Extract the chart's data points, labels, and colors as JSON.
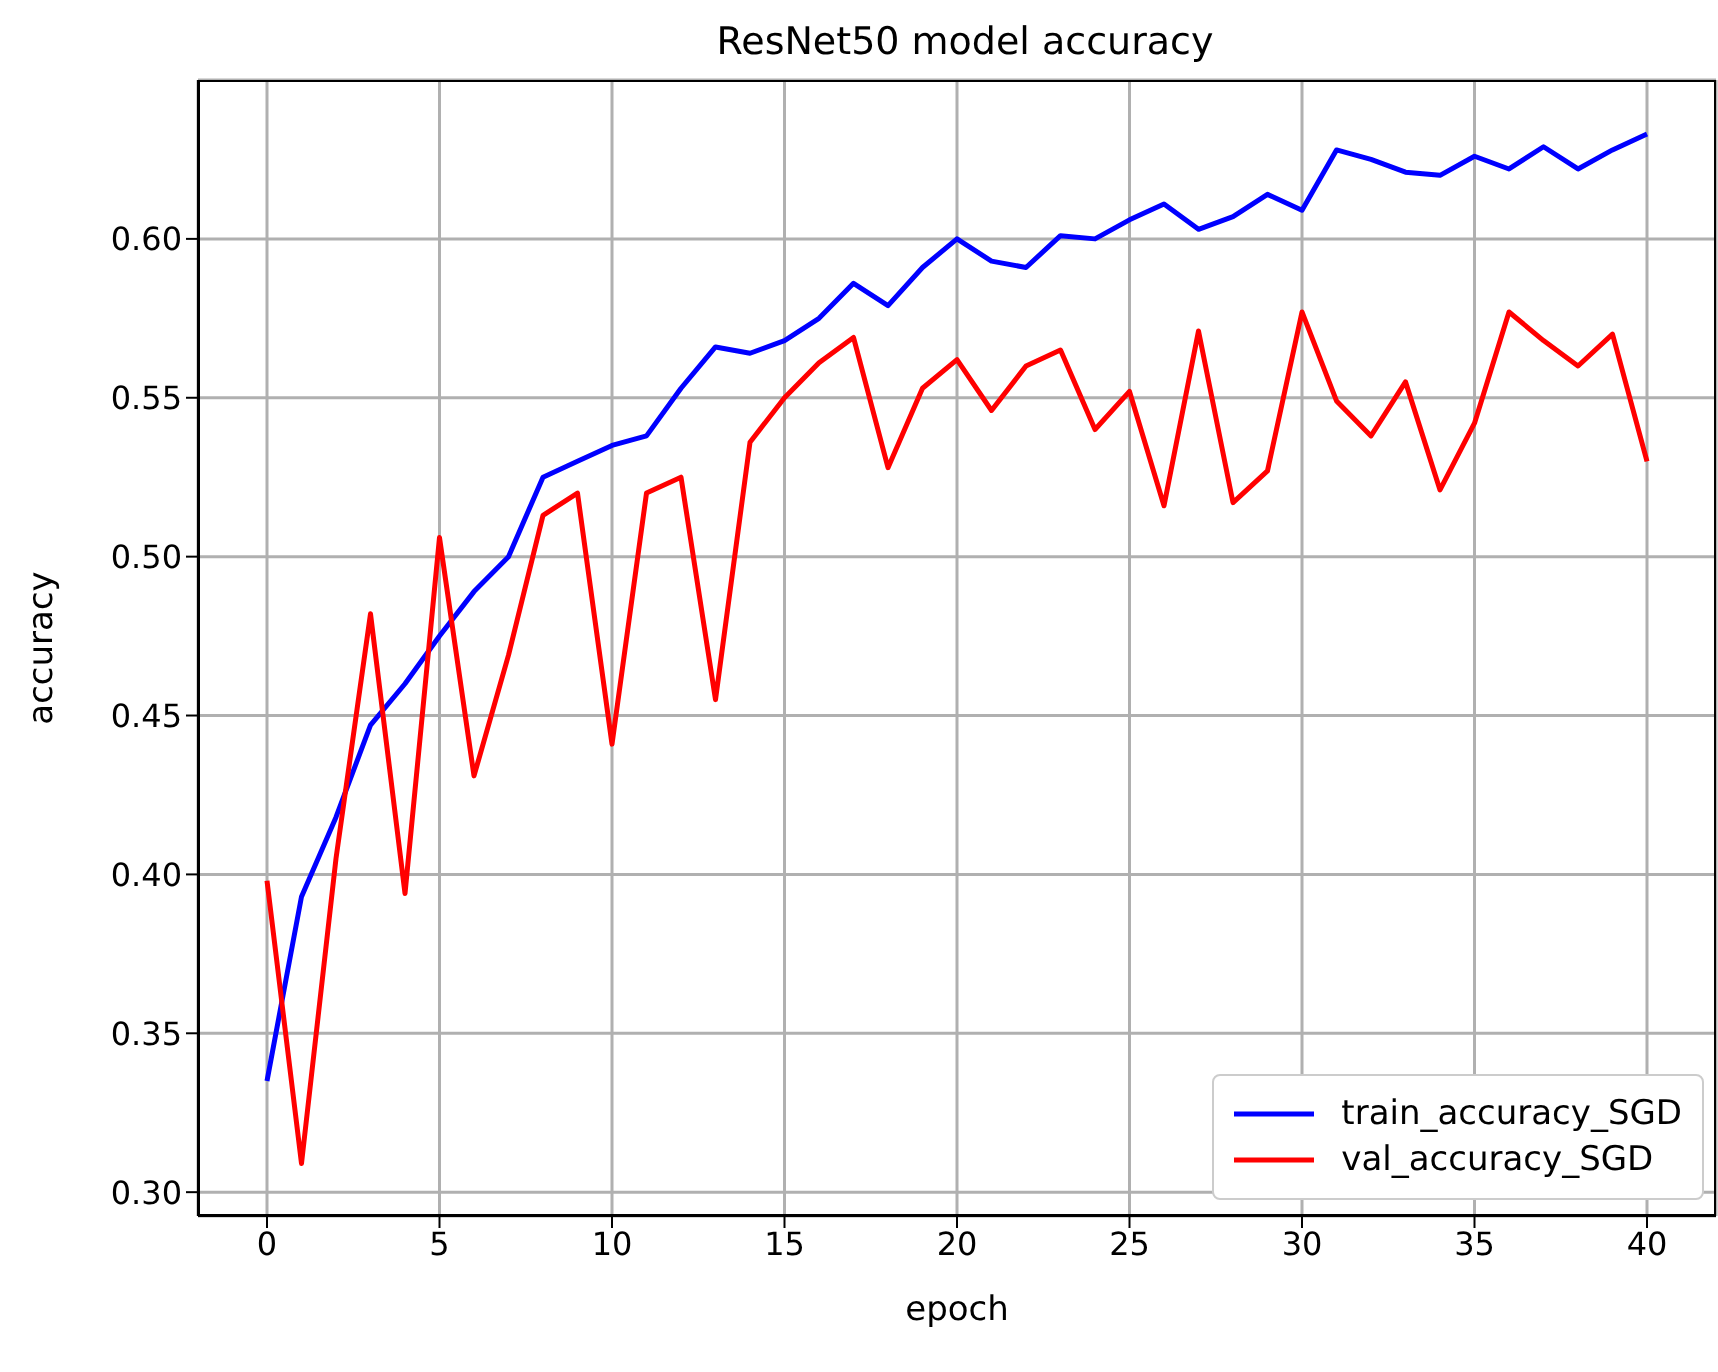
{
  "chart_data": {
    "type": "line",
    "title": "ResNet50 model accuracy",
    "xlabel": "epoch",
    "ylabel": "accuracy",
    "x": [
      0,
      1,
      2,
      3,
      4,
      5,
      6,
      7,
      8,
      9,
      10,
      11,
      12,
      13,
      14,
      15,
      16,
      17,
      18,
      19,
      20,
      21,
      22,
      23,
      24,
      25,
      26,
      27,
      28,
      29,
      30,
      31,
      32,
      33,
      34,
      35,
      36,
      37,
      38,
      39,
      40
    ],
    "series": [
      {
        "name": "train_accuracy_SGD",
        "color": "#0000ff",
        "values": [
          0.335,
          0.393,
          0.418,
          0.447,
          0.46,
          0.475,
          0.489,
          0.5,
          0.525,
          0.53,
          0.535,
          0.538,
          0.553,
          0.566,
          0.564,
          0.568,
          0.575,
          0.586,
          0.579,
          0.591,
          0.6,
          0.593,
          0.591,
          0.601,
          0.6,
          0.606,
          0.611,
          0.603,
          0.607,
          0.614,
          0.609,
          0.628,
          0.625,
          0.621,
          0.62,
          0.626,
          0.622,
          0.629,
          0.622,
          0.628,
          0.633
        ]
      },
      {
        "name": "val_accuracy_SGD",
        "color": "#ff0000",
        "values": [
          0.398,
          0.309,
          0.405,
          0.482,
          0.394,
          0.506,
          0.431,
          0.469,
          0.513,
          0.52,
          0.441,
          0.52,
          0.525,
          0.455,
          0.536,
          0.55,
          0.561,
          0.569,
          0.528,
          0.553,
          0.562,
          0.546,
          0.56,
          0.565,
          0.54,
          0.552,
          0.516,
          0.571,
          0.517,
          0.527,
          0.577,
          0.549,
          0.538,
          0.555,
          0.521,
          0.542,
          0.577,
          0.568,
          0.56,
          0.57,
          0.53
        ]
      }
    ],
    "xlim": [
      -2,
      42
    ],
    "xticks": [
      0,
      5,
      10,
      15,
      20,
      25,
      30,
      35,
      40
    ],
    "ylim": [
      0.2925,
      0.65
    ],
    "yticks": [
      {
        "value": 0.3,
        "label": "0.30"
      },
      {
        "value": 0.35,
        "label": "0.35"
      },
      {
        "value": 0.4,
        "label": "0.40"
      },
      {
        "value": 0.45,
        "label": "0.45"
      },
      {
        "value": 0.5,
        "label": "0.50"
      },
      {
        "value": 0.55,
        "label": "0.55"
      },
      {
        "value": 0.6,
        "label": "0.60"
      }
    ],
    "grid": true,
    "legend": "bottom right",
    "marker": "none",
    "line_style": "solid"
  }
}
